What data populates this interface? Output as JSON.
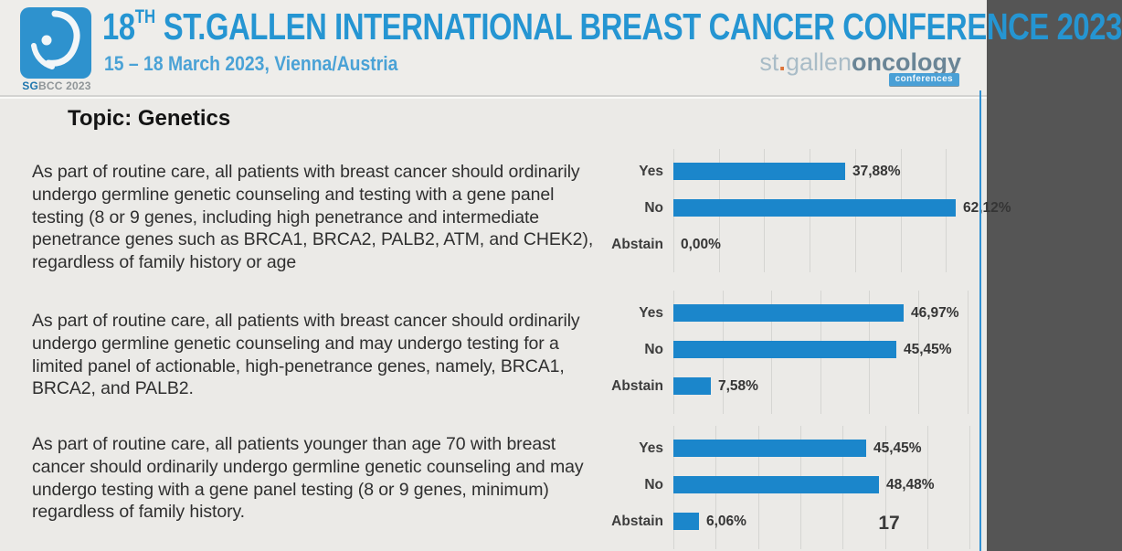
{
  "header": {
    "logo_caption": {
      "sg": "SG",
      "bcc_year": "BCC 2023"
    },
    "title": {
      "prefix": "18",
      "sup": "TH",
      "rest": " ST.GALLEN INTERNATIONAL BREAST CANCER CONFERENCE 2023"
    },
    "subtitle": "15 – 18 March 2023, Vienna/Austria",
    "brand": {
      "st": "st",
      "dot": ".",
      "gallen": "gallen",
      "oncology": "oncology",
      "badge": "conferences"
    }
  },
  "topic": "Topic: Genetics",
  "questions": [
    {
      "text": "As part of routine care, all patients with breast cancer should ordinarily undergo germline genetic counseling and testing with a gene panel testing (8 or 9 genes, including high penetrance and intermediate penetrance genes such as BRCA1, BRCA2, PALB2, ATM, and CHEK2), regardless of family history or age"
    },
    {
      "text": "As part of routine care, all patients with breast cancer should ordinarily undergo germline genetic counseling and may undergo testing for a limited panel of actionable, high-penetrance genes, namely, BRCA1, BRCA2, and PALB2."
    },
    {
      "text": "As part of routine care, all patients younger than age 70 with breast cancer should ordinarily undergo germline genetic counseling and may undergo testing with a gene panel testing (8 or 9 genes, minimum) regardless of family history."
    }
  ],
  "chart_data": [
    {
      "type": "bar",
      "orientation": "horizontal",
      "categories": [
        "Yes",
        "No",
        "Abstain"
      ],
      "values": [
        37.88,
        62.12,
        0.0
      ],
      "labels": [
        "37,88%",
        "62,12%",
        "0,00%"
      ],
      "xlim": [
        0,
        69
      ],
      "gridline_step": 10,
      "grid": true,
      "legend": false
    },
    {
      "type": "bar",
      "orientation": "horizontal",
      "categories": [
        "Yes",
        "No",
        "Abstain"
      ],
      "values": [
        46.97,
        45.45,
        7.58
      ],
      "labels": [
        "46,97%",
        "45,45%",
        "7,58%"
      ],
      "xlim": [
        0,
        64
      ],
      "gridline_step": 10,
      "grid": true,
      "legend": false
    },
    {
      "type": "bar",
      "orientation": "horizontal",
      "categories": [
        "Yes",
        "No",
        "Abstain"
      ],
      "values": [
        45.45,
        48.48,
        6.06
      ],
      "labels": [
        "45,45%",
        "48,48%",
        "6,06%"
      ],
      "xlim": [
        0,
        74
      ],
      "gridline_step": 10,
      "grid": true,
      "legend": false
    }
  ],
  "page_number": "17",
  "colors": {
    "bar_blue": "#1b86cb",
    "title_blue": "#2595d2",
    "subtitle_blue": "#4aa2d6",
    "background": "#ebeae7",
    "gridline": "#d5d5d2",
    "edge_line_blue": "#3090d3",
    "badge_blue": "#4aa0d6",
    "orange_dot": "#dd7338"
  }
}
